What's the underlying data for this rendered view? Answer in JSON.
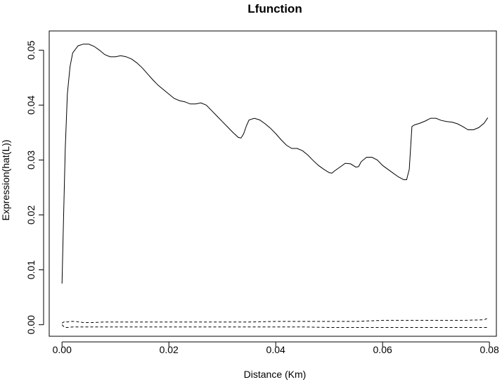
{
  "chart_data": {
    "type": "line",
    "title": "Lfunction",
    "xlabel": "Distance (Km)",
    "ylabel": "Expression(hat(L))",
    "xlim": [
      -0.0024,
      0.0813
    ],
    "ylim": [
      -0.0021,
      0.0535
    ],
    "x_ticks": [
      0.0,
      0.02,
      0.04,
      0.06,
      0.08
    ],
    "x_tick_labels": [
      "0.00",
      "0.02",
      "0.04",
      "0.06",
      "0.08"
    ],
    "y_ticks": [
      0.0,
      0.01,
      0.02,
      0.03,
      0.04,
      0.05
    ],
    "y_tick_labels": [
      "0.00",
      "0.01",
      "0.02",
      "0.03",
      "0.04",
      "0.05"
    ],
    "grid": false,
    "series": [
      {
        "line_style": "solid",
        "color": "#000000",
        "points": [
          [
            0.0,
            0.0075
          ],
          [
            0.0003,
            0.02
          ],
          [
            0.0006,
            0.032
          ],
          [
            0.001,
            0.042
          ],
          [
            0.0015,
            0.047
          ],
          [
            0.002,
            0.0495
          ],
          [
            0.003,
            0.0508
          ],
          [
            0.004,
            0.0511
          ],
          [
            0.005,
            0.0511
          ],
          [
            0.006,
            0.0507
          ],
          [
            0.007,
            0.05
          ],
          [
            0.008,
            0.0492
          ],
          [
            0.009,
            0.0488
          ],
          [
            0.01,
            0.0488
          ],
          [
            0.011,
            0.049
          ],
          [
            0.012,
            0.0488
          ],
          [
            0.013,
            0.0484
          ],
          [
            0.014,
            0.0477
          ],
          [
            0.015,
            0.0468
          ],
          [
            0.016,
            0.0457
          ],
          [
            0.017,
            0.0446
          ],
          [
            0.018,
            0.0436
          ],
          [
            0.019,
            0.0428
          ],
          [
            0.02,
            0.042
          ],
          [
            0.021,
            0.0412
          ],
          [
            0.022,
            0.0408
          ],
          [
            0.023,
            0.0406
          ],
          [
            0.024,
            0.0402
          ],
          [
            0.025,
            0.0402
          ],
          [
            0.026,
            0.0404
          ],
          [
            0.027,
            0.04
          ],
          [
            0.028,
            0.039
          ],
          [
            0.029,
            0.038
          ],
          [
            0.03,
            0.037
          ],
          [
            0.031,
            0.036
          ],
          [
            0.032,
            0.035
          ],
          [
            0.033,
            0.0341
          ],
          [
            0.0335,
            0.034
          ],
          [
            0.034,
            0.0348
          ],
          [
            0.0345,
            0.0362
          ],
          [
            0.035,
            0.0373
          ],
          [
            0.036,
            0.0376
          ],
          [
            0.037,
            0.0373
          ],
          [
            0.038,
            0.0366
          ],
          [
            0.039,
            0.0358
          ],
          [
            0.04,
            0.0348
          ],
          [
            0.041,
            0.0337
          ],
          [
            0.042,
            0.0327
          ],
          [
            0.043,
            0.0321
          ],
          [
            0.044,
            0.0321
          ],
          [
            0.045,
            0.0317
          ],
          [
            0.046,
            0.0309
          ],
          [
            0.047,
            0.0299
          ],
          [
            0.048,
            0.029
          ],
          [
            0.049,
            0.0283
          ],
          [
            0.05,
            0.0277
          ],
          [
            0.0505,
            0.0276
          ],
          [
            0.051,
            0.028
          ],
          [
            0.052,
            0.0287
          ],
          [
            0.053,
            0.0294
          ],
          [
            0.054,
            0.0293
          ],
          [
            0.055,
            0.0287
          ],
          [
            0.0555,
            0.0288
          ],
          [
            0.056,
            0.0297
          ],
          [
            0.057,
            0.0305
          ],
          [
            0.058,
            0.0305
          ],
          [
            0.059,
            0.03
          ],
          [
            0.06,
            0.029
          ],
          [
            0.061,
            0.0283
          ],
          [
            0.062,
            0.0276
          ],
          [
            0.063,
            0.0269
          ],
          [
            0.064,
            0.0264
          ],
          [
            0.0645,
            0.0264
          ],
          [
            0.065,
            0.0283
          ],
          [
            0.0655,
            0.0361
          ],
          [
            0.066,
            0.0364
          ],
          [
            0.067,
            0.0367
          ],
          [
            0.068,
            0.0371
          ],
          [
            0.069,
            0.0376
          ],
          [
            0.07,
            0.0376
          ],
          [
            0.071,
            0.0372
          ],
          [
            0.072,
            0.037
          ],
          [
            0.073,
            0.0369
          ],
          [
            0.074,
            0.0366
          ],
          [
            0.075,
            0.0361
          ],
          [
            0.076,
            0.0355
          ],
          [
            0.077,
            0.0355
          ],
          [
            0.078,
            0.0359
          ],
          [
            0.079,
            0.0367
          ],
          [
            0.0797,
            0.0377
          ]
        ]
      },
      {
        "line_style": "dashed",
        "color": "#000000",
        "points": [
          [
            0.0,
            0.0003
          ],
          [
            0.0005,
            0.0006
          ],
          [
            0.001,
            0.0005
          ],
          [
            0.0015,
            0.0006
          ],
          [
            0.0025,
            0.0006
          ],
          [
            0.004,
            0.0004
          ],
          [
            0.006,
            0.0004
          ],
          [
            0.008,
            0.0005
          ],
          [
            0.01,
            0.0005
          ],
          [
            0.015,
            0.0005
          ],
          [
            0.02,
            0.0005
          ],
          [
            0.025,
            0.0005
          ],
          [
            0.03,
            0.0005
          ],
          [
            0.035,
            0.0005
          ],
          [
            0.04,
            0.0006
          ],
          [
            0.045,
            0.0006
          ],
          [
            0.05,
            0.0006
          ],
          [
            0.055,
            0.0006
          ],
          [
            0.06,
            0.0008
          ],
          [
            0.065,
            0.0008
          ],
          [
            0.07,
            0.0008
          ],
          [
            0.075,
            0.0008
          ],
          [
            0.079,
            0.0009
          ],
          [
            0.0797,
            0.0012
          ]
        ]
      },
      {
        "line_style": "dashed",
        "color": "#000000",
        "points": [
          [
            0.0,
            0.0
          ],
          [
            0.0005,
            -0.0005
          ],
          [
            0.001,
            -0.0005
          ],
          [
            0.002,
            -0.0004
          ],
          [
            0.004,
            -0.0004
          ],
          [
            0.006,
            -0.0004
          ],
          [
            0.01,
            -0.0004
          ],
          [
            0.015,
            -0.0004
          ],
          [
            0.02,
            -0.0004
          ],
          [
            0.025,
            -0.0004
          ],
          [
            0.03,
            -0.0004
          ],
          [
            0.035,
            -0.0004
          ],
          [
            0.04,
            -0.0004
          ],
          [
            0.045,
            -0.0004
          ],
          [
            0.05,
            -0.0005
          ],
          [
            0.055,
            -0.0005
          ],
          [
            0.06,
            -0.0005
          ],
          [
            0.065,
            -0.0005
          ],
          [
            0.07,
            -0.0005
          ],
          [
            0.075,
            -0.0005
          ],
          [
            0.0797,
            -0.0005
          ]
        ]
      }
    ]
  }
}
